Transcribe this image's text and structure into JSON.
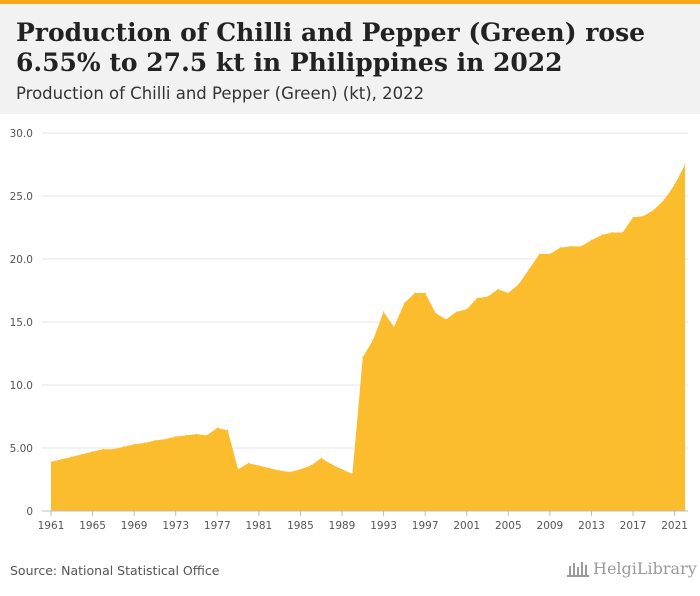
{
  "header": {
    "title": "Production of Chilli and Pepper (Green) rose 6.55% to 27.5 kt in Philippines in 2022",
    "subtitle": "Production of Chilli and Pepper (Green) (kt), 2022"
  },
  "footer": {
    "source": "Source: National Statistical Office",
    "logo_text": "HelgiLibrary"
  },
  "colors": {
    "area_fill": "#fbbc2e",
    "accent": "#f5a81c",
    "grid": "#e6e6e6"
  },
  "chart_data": {
    "type": "area",
    "title": "Production of Chilli and Pepper (Green) rose 6.55% to 27.5 kt in Philippines in 2022",
    "subtitle": "Production of Chilli and Pepper (Green) (kt), 2022",
    "xlabel": "",
    "ylabel": "",
    "ylim": [
      0,
      30
    ],
    "yticks": [
      0,
      5,
      10,
      15,
      20,
      25,
      30
    ],
    "ytick_labels": [
      "0",
      "5.00",
      "10.0",
      "15.0",
      "20.0",
      "25.0",
      "30.0"
    ],
    "xticks": [
      1961,
      1965,
      1969,
      1973,
      1977,
      1981,
      1985,
      1989,
      1993,
      1997,
      2001,
      2005,
      2009,
      2013,
      2017,
      2021
    ],
    "grid": true,
    "x": [
      1961,
      1962,
      1963,
      1964,
      1965,
      1966,
      1967,
      1968,
      1969,
      1970,
      1971,
      1972,
      1973,
      1974,
      1975,
      1976,
      1977,
      1978,
      1979,
      1980,
      1981,
      1982,
      1983,
      1984,
      1985,
      1986,
      1987,
      1988,
      1989,
      1990,
      1991,
      1992,
      1993,
      1994,
      1995,
      1996,
      1997,
      1998,
      1999,
      2000,
      2001,
      2002,
      2003,
      2004,
      2005,
      2006,
      2007,
      2008,
      2009,
      2010,
      2011,
      2012,
      2013,
      2014,
      2015,
      2016,
      2017,
      2018,
      2019,
      2020,
      2021,
      2022
    ],
    "values": [
      3.9,
      4.1,
      4.3,
      4.5,
      4.7,
      4.9,
      4.9,
      5.1,
      5.3,
      5.4,
      5.6,
      5.7,
      5.9,
      6.0,
      6.1,
      6.0,
      6.6,
      6.4,
      3.3,
      3.8,
      3.6,
      3.4,
      3.2,
      3.1,
      3.3,
      3.6,
      4.2,
      3.7,
      3.3,
      2.95,
      12.2,
      13.6,
      15.8,
      14.6,
      16.5,
      17.3,
      17.3,
      15.7,
      15.2,
      15.8,
      16.0,
      16.9,
      17.0,
      17.6,
      17.3,
      18.0,
      19.2,
      20.4,
      20.4,
      20.9,
      21.0,
      21.0,
      21.5,
      21.9,
      22.1,
      22.1,
      23.3,
      23.4,
      23.9,
      24.7,
      25.9,
      27.5
    ]
  }
}
